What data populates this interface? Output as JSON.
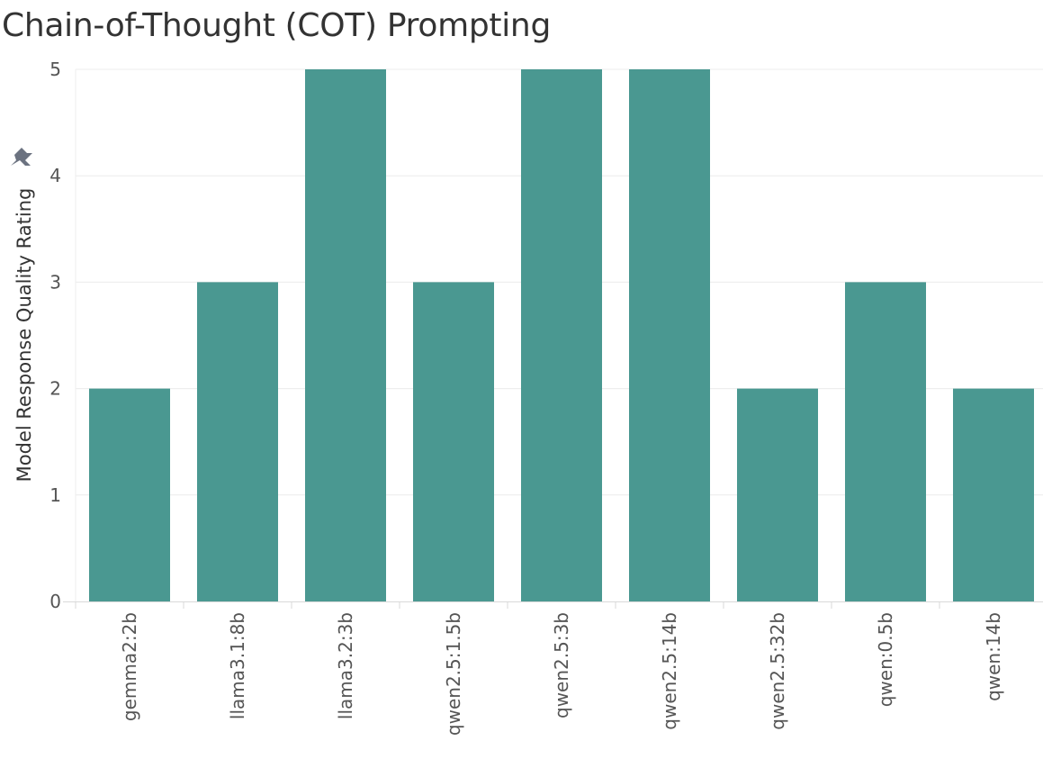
{
  "page": {
    "title": "Chain-of-Thought (COT) Prompting"
  },
  "icons": {
    "pin": "pin-icon"
  },
  "colors": {
    "bar": "#4a9891",
    "grid": "#ececec",
    "axis": "#d9d9d9",
    "tick_text": "#555555",
    "pin": "#6b7280"
  },
  "chart_data": {
    "type": "bar",
    "title": "Chain-of-Thought (COT) Prompting",
    "xlabel": "",
    "ylabel": "Model Response Quality Rating",
    "categories": [
      "gemma2:2b",
      "llama3.1:8b",
      "llama3.2:3b",
      "qwen2.5:1.5b",
      "qwen2.5:3b",
      "qwen2.5:14b",
      "qwen2.5:32b",
      "qwen:0.5b",
      "qwen:14b"
    ],
    "values": [
      2,
      3,
      5,
      3,
      5,
      5,
      2,
      3,
      2
    ],
    "ylim": [
      0,
      5
    ],
    "yticks": [
      0,
      1,
      2,
      3,
      4,
      5
    ],
    "grid": true,
    "legend": "none"
  }
}
